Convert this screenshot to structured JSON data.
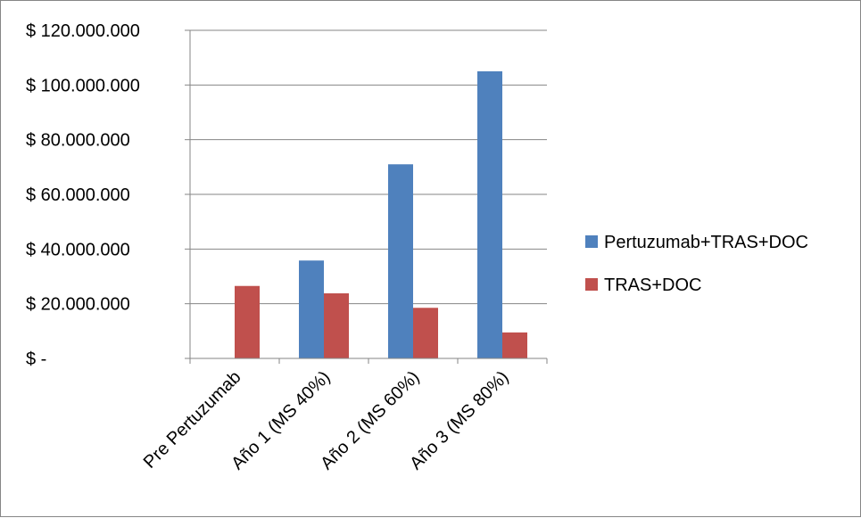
{
  "chart_data": {
    "type": "bar",
    "categories": [
      "Pre Pertuzumab",
      "Año 1 (MS 40%)",
      "Año 2 (MS 60%)",
      "Año 3 (MS 80%)"
    ],
    "series": [
      {
        "name": "Pertuzumab+TRAS+DOC",
        "values": [
          0,
          35800000,
          71000000,
          105000000
        ],
        "color": "#4f81bd"
      },
      {
        "name": "TRAS+DOC",
        "values": [
          26500000,
          23800000,
          18500000,
          9500000
        ],
        "color": "#c0504d"
      }
    ],
    "ylim": [
      0,
      120000000
    ],
    "y_ticks": [
      {
        "value": 120000000,
        "label": "$ 120.000.000"
      },
      {
        "value": 100000000,
        "label": "$ 100.000.000"
      },
      {
        "value": 80000000,
        "label": "$ 80.000.000"
      },
      {
        "value": 60000000,
        "label": "$ 60.000.000"
      },
      {
        "value": 40000000,
        "label": "$ 40.000.000"
      },
      {
        "value": 20000000,
        "label": "$ 20.000.000"
      },
      {
        "value": 0,
        "label": "$ -"
      }
    ],
    "grid": true,
    "legend_position": "right"
  }
}
